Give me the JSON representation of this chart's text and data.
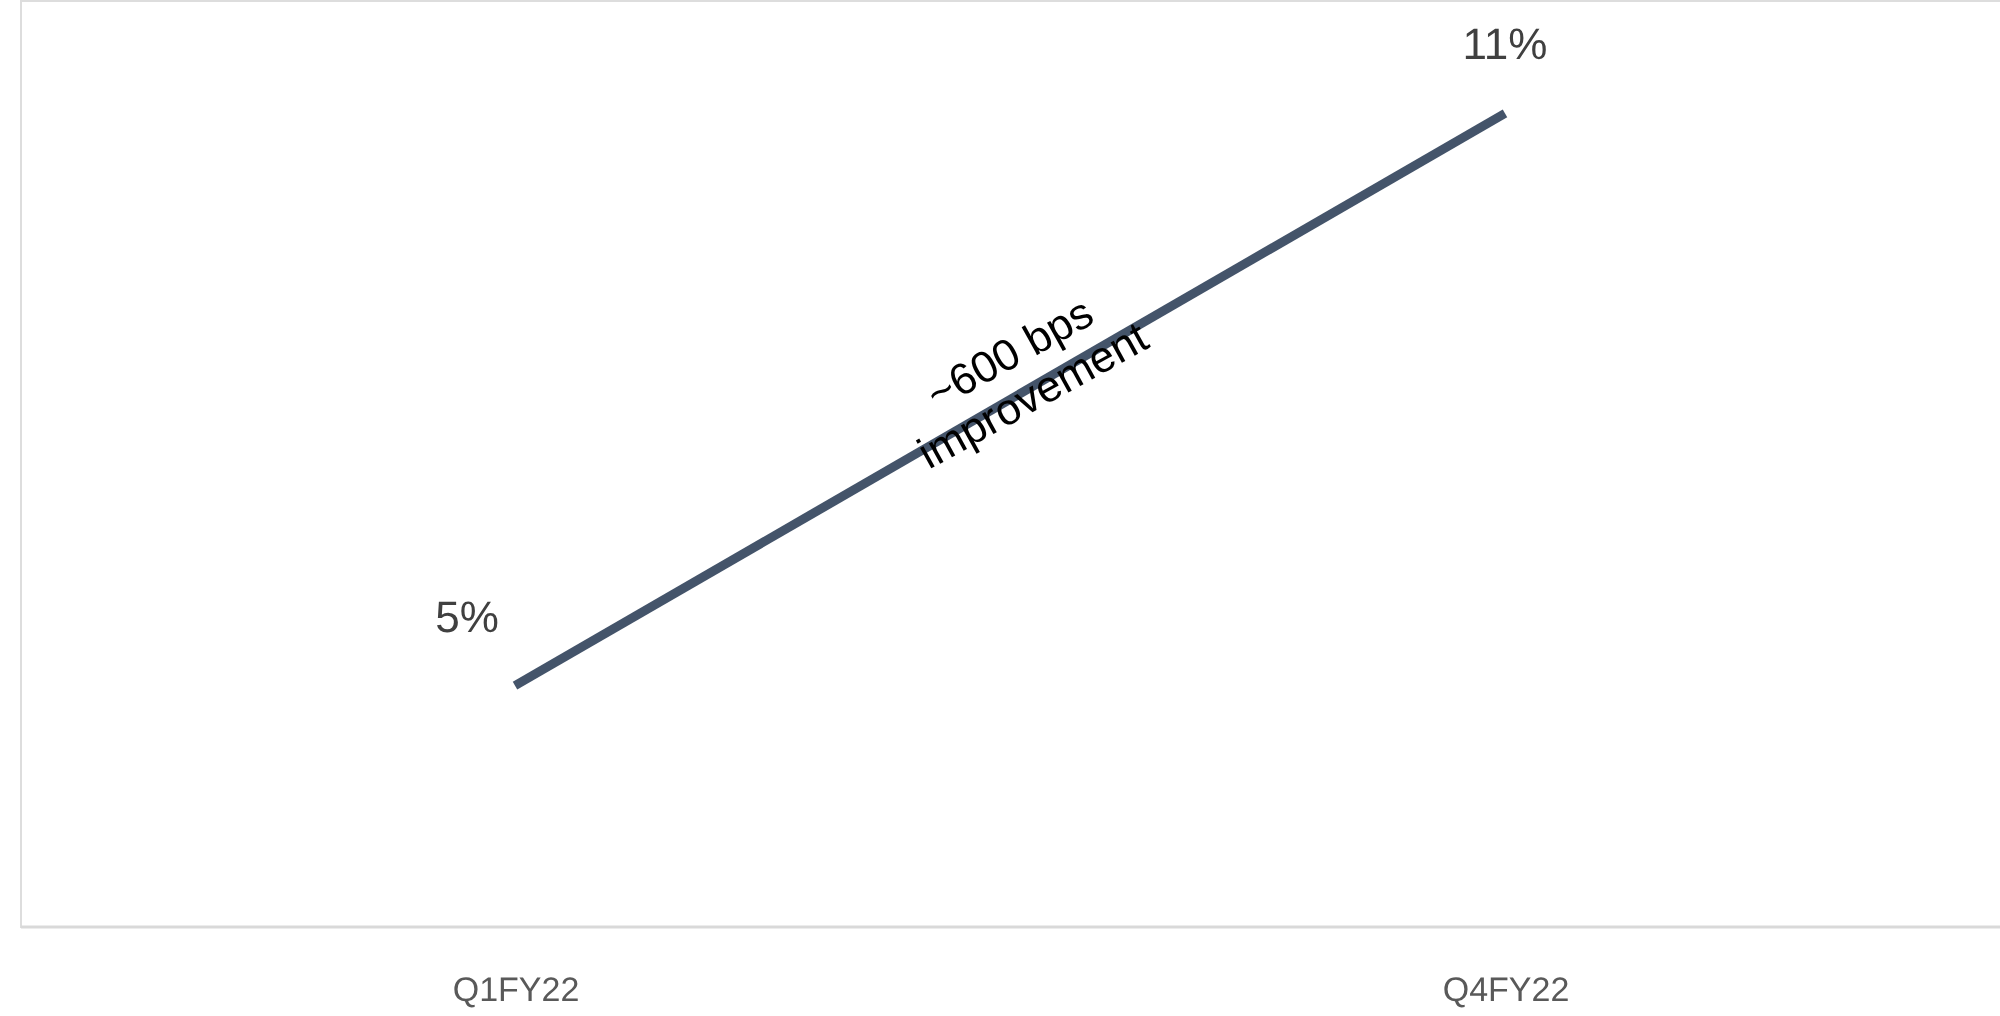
{
  "chart_data": {
    "type": "line",
    "categories": [
      "Q1FY22",
      "Q4FY22"
    ],
    "series": [
      {
        "color": "#44546a",
        "values": [
          5,
          11
        ],
        "value_labels": [
          "5%",
          "11%"
        ]
      }
    ],
    "annotations": [
      "~600 bps\nimprovement"
    ],
    "grid": false,
    "marker": "none",
    "line_style": "solid"
  }
}
